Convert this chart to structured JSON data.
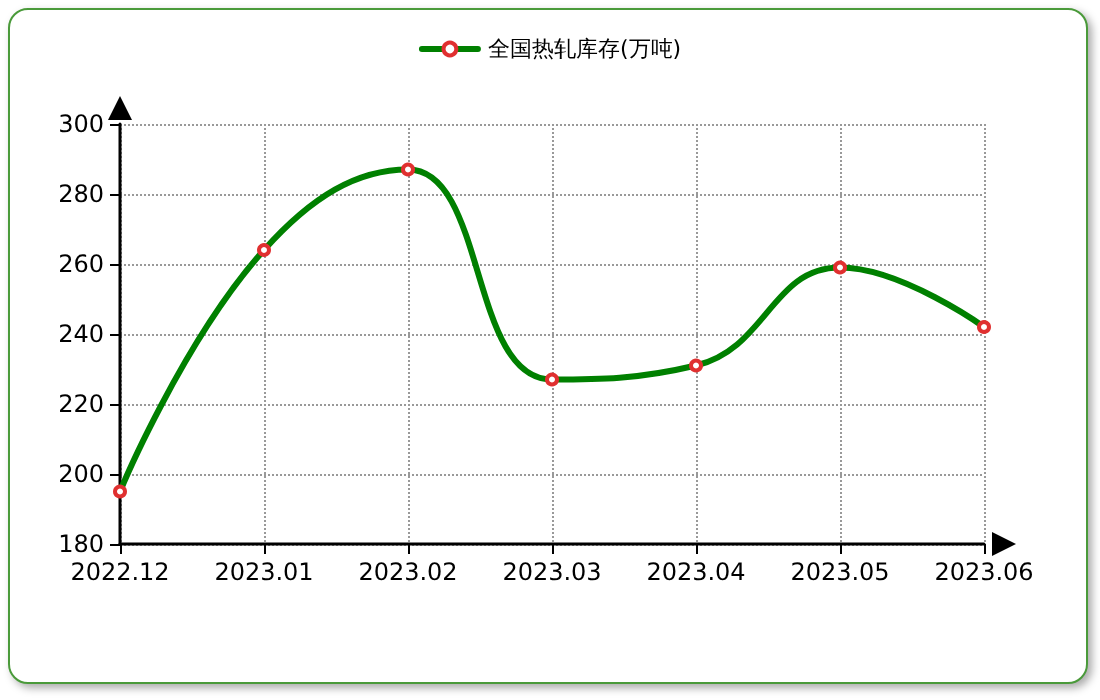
{
  "chart_data": {
    "type": "line",
    "categories": [
      "2022.12",
      "2023.01",
      "2023.02",
      "2023.03",
      "2023.04",
      "2023.05",
      "2023.06"
    ],
    "series": [
      {
        "name": "全国热轧库存(万吨)",
        "color": "#008000",
        "values": [
          195,
          264,
          287,
          227,
          231,
          259,
          242
        ]
      }
    ],
    "ylim": [
      180,
      300
    ],
    "yticks": [
      180,
      200,
      220,
      240,
      260,
      280,
      300
    ],
    "grid": true,
    "legend": "top",
    "marker": "circle",
    "line_style": "solid"
  }
}
